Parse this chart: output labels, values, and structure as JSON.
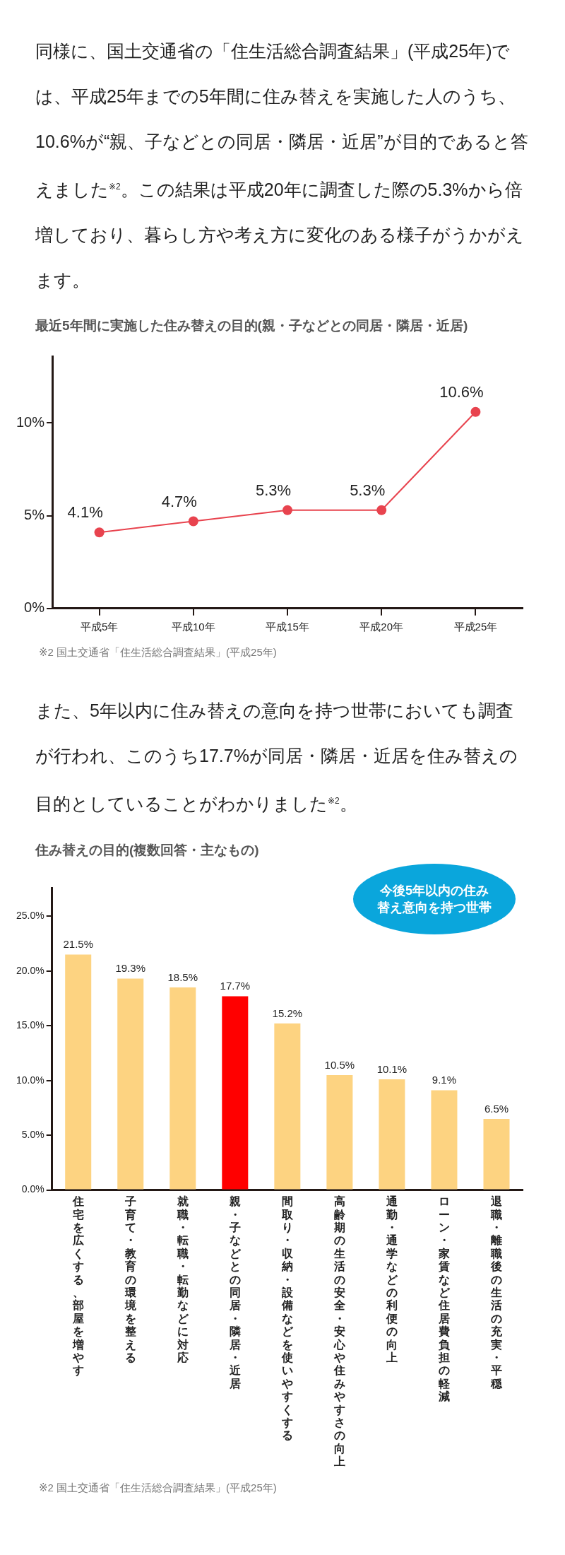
{
  "chart_data": [
    {
      "type": "line",
      "subtitle": "同様に、国土交通省の「住生活総合調査結果」(平成25年)では、平成25年までの5年間に住み替えを実施した人のうち、10.6%が“親、子などとの同居・隣居・近居”が目的であると答えました$^{※2}$。この結果は平成20年に調査した際の5.3%から倍増しており、暮らし方や考え方に変化のある様子がうかがえます。",
      "title": "最近5年間に実施した住み替えの目的(親・子などとの同居・隣居・近居)",
      "categories": [
        "平成5年",
        "平成10年",
        "平成15年",
        "平成20年",
        "平成25年"
      ],
      "values": [
        4.1,
        4.7,
        5.3,
        5.3,
        10.6
      ],
      "color": "#e8434e",
      "marker": "circle",
      "value_labels": [
        "4.1%",
        "4.7%",
        "5.3%",
        "5.3%",
        "10.6%"
      ],
      "ylim": [
        0,
        13.6
      ],
      "yticks": [
        {
          "value": 0,
          "label": "0%"
        },
        {
          "value": 5,
          "label": "5%"
        },
        {
          "value": 10,
          "label": "10%"
        }
      ],
      "grid": false,
      "legend": false,
      "annotations": [
        "※2 国土交通省「住生活総合調査結果」(平成25年)"
      ]
    },
    {
      "type": "bar",
      "subtitle": "また、5年以内に住み替えの意向を持つ世帯においても調査が行われ、このうち17.7%が同居・隣居・近居を住み替えの目的としていることがわかりました$^{※2}$。",
      "title": "住み替えの目的(複数回答・主なもの)",
      "categories": [
        "住宅を広くする、部屋を増やす",
        "子育て・教育の環境を整える",
        "就職・転職・転勤などに対応",
        "親・子などとの同居・隣居・近居",
        "間取り・収納・設備などを使いやすくする",
        "高齢期の生活の安全・安心や住みやすさの向上",
        "通勤・通学などの利便の向上",
        "ローン・家賃など住居費負担の軽減",
        "退職・離職後の生活の充実・平穏"
      ],
      "values": [
        21.5,
        19.3,
        18.5,
        17.7,
        15.2,
        10.5,
        10.1,
        9.1,
        6.5
      ],
      "colors": [
        "#fdd381",
        "#fdd381",
        "#fdd381",
        "#ff0000",
        "#fdd381",
        "#fdd381",
        "#fdd381",
        "#fdd381",
        "#fdd381"
      ],
      "value_labels": [
        "21.5%",
        "19.3%",
        "18.5%",
        "17.7%",
        "15.2%",
        "10.5%",
        "10.1%",
        "9.1%",
        "6.5%"
      ],
      "ylim": [
        0,
        27.6
      ],
      "yticks": [
        {
          "value": 0,
          "label": "0.0%"
        },
        {
          "value": 5,
          "label": "5.0%"
        },
        {
          "value": 10,
          "label": "10.0%"
        },
        {
          "value": 15,
          "label": "15.0%"
        },
        {
          "value": 20,
          "label": "20.0%"
        },
        {
          "value": 25,
          "label": "25.0%"
        }
      ],
      "grid": false,
      "legend": false,
      "annotations": [
        "今後5年以内の住み替え意向を持つ世帯",
        "※2 国土交通省「住生活総合調査結果」(平成25年)"
      ]
    }
  ]
}
